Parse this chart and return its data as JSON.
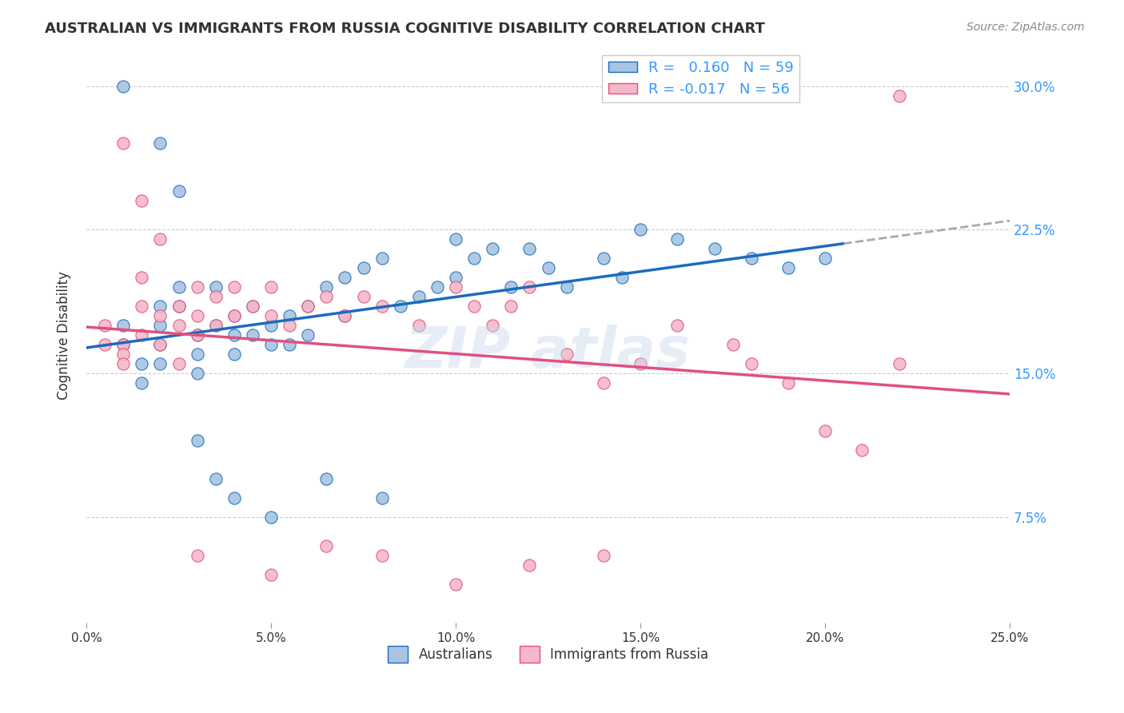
{
  "title": "AUSTRALIAN VS IMMIGRANTS FROM RUSSIA COGNITIVE DISABILITY CORRELATION CHART",
  "source": "Source: ZipAtlas.com",
  "ylabel": "Cognitive Disability",
  "yticks": [
    "7.5%",
    "15.0%",
    "22.5%",
    "30.0%"
  ],
  "ytick_vals": [
    0.075,
    0.15,
    0.225,
    0.3
  ],
  "xmin": 0.0,
  "xmax": 0.25,
  "ymin": 0.02,
  "ymax": 0.32,
  "R_aus": 0.16,
  "N_aus": 59,
  "R_rus": -0.017,
  "N_rus": 56,
  "color_aus": "#a8c4e0",
  "color_rus": "#f4b8c8",
  "color_aus_line": "#1a6bbf",
  "color_rus_line": "#e05080",
  "legend_label_aus": "Australians",
  "legend_label_rus": "Immigrants from Russia",
  "aus_x": [
    0.01,
    0.01,
    0.015,
    0.015,
    0.02,
    0.02,
    0.02,
    0.02,
    0.025,
    0.025,
    0.03,
    0.03,
    0.03,
    0.035,
    0.035,
    0.04,
    0.04,
    0.04,
    0.045,
    0.045,
    0.05,
    0.05,
    0.055,
    0.055,
    0.06,
    0.06,
    0.065,
    0.07,
    0.07,
    0.075,
    0.08,
    0.085,
    0.09,
    0.095,
    0.1,
    0.1,
    0.105,
    0.11,
    0.115,
    0.12,
    0.125,
    0.13,
    0.14,
    0.145,
    0.15,
    0.16,
    0.17,
    0.18,
    0.19,
    0.2,
    0.01,
    0.02,
    0.025,
    0.03,
    0.035,
    0.04,
    0.05,
    0.065,
    0.08
  ],
  "aus_y": [
    0.175,
    0.165,
    0.155,
    0.145,
    0.185,
    0.175,
    0.165,
    0.155,
    0.195,
    0.185,
    0.17,
    0.16,
    0.15,
    0.195,
    0.175,
    0.18,
    0.17,
    0.16,
    0.185,
    0.17,
    0.175,
    0.165,
    0.18,
    0.165,
    0.185,
    0.17,
    0.195,
    0.2,
    0.18,
    0.205,
    0.21,
    0.185,
    0.19,
    0.195,
    0.22,
    0.2,
    0.21,
    0.215,
    0.195,
    0.215,
    0.205,
    0.195,
    0.21,
    0.2,
    0.225,
    0.22,
    0.215,
    0.21,
    0.205,
    0.21,
    0.3,
    0.27,
    0.245,
    0.115,
    0.095,
    0.085,
    0.075,
    0.095,
    0.085
  ],
  "rus_x": [
    0.005,
    0.005,
    0.01,
    0.01,
    0.01,
    0.015,
    0.015,
    0.015,
    0.02,
    0.02,
    0.025,
    0.025,
    0.03,
    0.03,
    0.035,
    0.035,
    0.04,
    0.04,
    0.045,
    0.05,
    0.05,
    0.055,
    0.06,
    0.065,
    0.07,
    0.075,
    0.08,
    0.09,
    0.1,
    0.105,
    0.11,
    0.115,
    0.12,
    0.13,
    0.14,
    0.15,
    0.16,
    0.175,
    0.18,
    0.19,
    0.2,
    0.21,
    0.22,
    0.03,
    0.05,
    0.065,
    0.08,
    0.1,
    0.12,
    0.14,
    0.01,
    0.015,
    0.02,
    0.025,
    0.03,
    0.22
  ],
  "rus_y": [
    0.175,
    0.165,
    0.165,
    0.16,
    0.155,
    0.2,
    0.185,
    0.17,
    0.18,
    0.165,
    0.185,
    0.175,
    0.195,
    0.18,
    0.19,
    0.175,
    0.195,
    0.18,
    0.185,
    0.195,
    0.18,
    0.175,
    0.185,
    0.19,
    0.18,
    0.19,
    0.185,
    0.175,
    0.195,
    0.185,
    0.175,
    0.185,
    0.195,
    0.16,
    0.145,
    0.155,
    0.175,
    0.165,
    0.155,
    0.145,
    0.12,
    0.11,
    0.155,
    0.055,
    0.045,
    0.06,
    0.055,
    0.04,
    0.05,
    0.055,
    0.27,
    0.24,
    0.22,
    0.155,
    0.17,
    0.295
  ]
}
